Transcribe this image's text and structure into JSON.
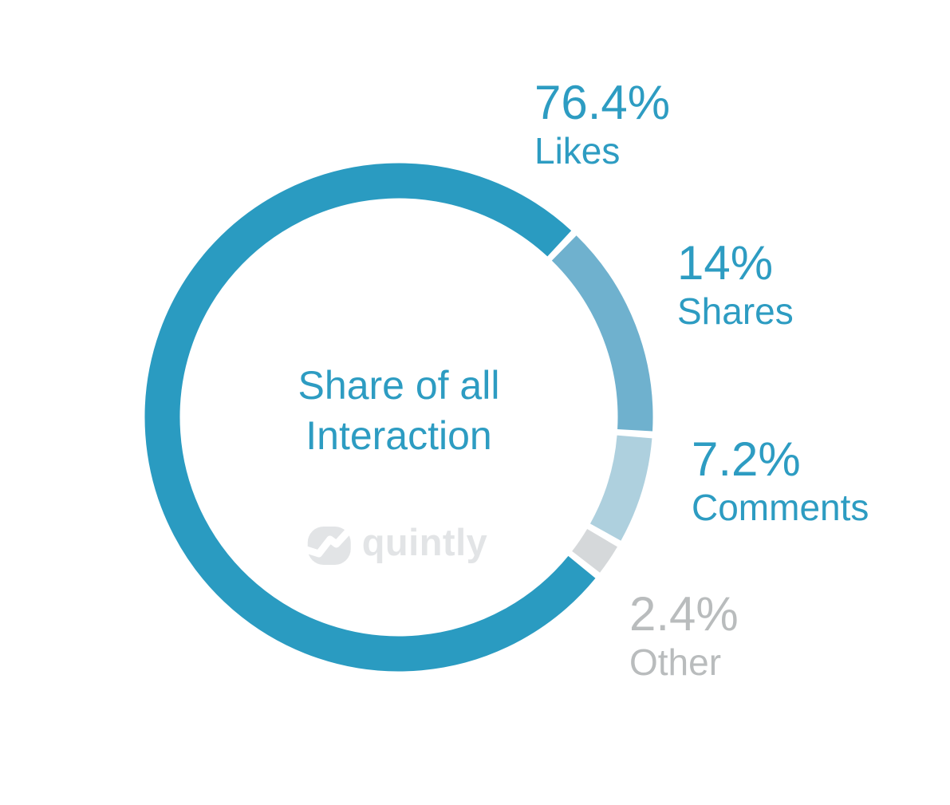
{
  "page": {
    "background": "#ffffff"
  },
  "chart_data": {
    "type": "pie",
    "variant": "donut",
    "title": "Share of all Interaction",
    "center_label_lines": [
      "Share of all",
      "Interaction"
    ],
    "legend_position": "outside-right-callouts",
    "start_angle_deg": 128.5,
    "direction": "clockwise",
    "gap_deg": 1.6,
    "slices": [
      {
        "label": "Likes",
        "value": 76.4,
        "display_value": "76.4%",
        "color": "#2a9bc1",
        "label_color": "#2d9cc2"
      },
      {
        "label": "Shares",
        "value": 14,
        "display_value": "14%",
        "color": "#6fb1ce",
        "label_color": "#2d9cc2"
      },
      {
        "label": "Comments",
        "value": 7.2,
        "display_value": "7.2%",
        "color": "#aed0de",
        "label_color": "#2d9cc2"
      },
      {
        "label": "Other",
        "value": 2.4,
        "display_value": "2.4%",
        "color": "#d5d8da",
        "label_color": "#b9bcbd"
      }
    ]
  },
  "watermark": {
    "text": "quintly",
    "color": "#e2e4e6"
  }
}
